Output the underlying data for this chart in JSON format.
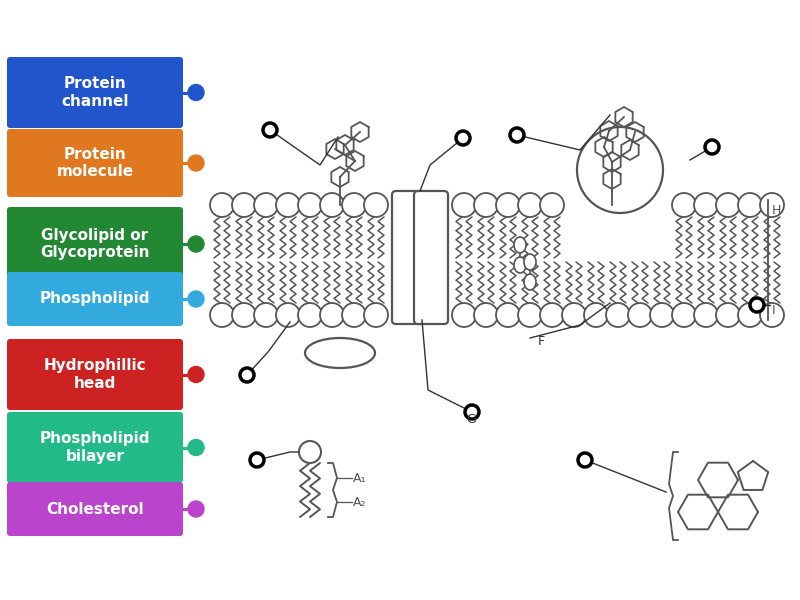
{
  "bg_color": "#ffffff",
  "legend_items": [
    {
      "label": "Protein\nchannel",
      "color": "#2255cc",
      "dot_color": "#2255cc"
    },
    {
      "label": "Protein\nmolecule",
      "color": "#e07820",
      "dot_color": "#e07820"
    },
    {
      "label": "Glycolipid or\nGlycoprotein",
      "color": "#228833",
      "dot_color": "#228833"
    },
    {
      "label": "Phospholipid",
      "color": "#33aadd",
      "dot_color": "#33aadd"
    },
    {
      "label": "Hydrophillic\nhead",
      "color": "#cc2222",
      "dot_color": "#cc2222"
    },
    {
      "label": "Phospholipid\nbilayer",
      "color": "#22bb88",
      "dot_color": "#22bb88"
    },
    {
      "label": "Cholesterol",
      "color": "#bb44cc",
      "dot_color": "#bb44cc"
    }
  ],
  "membrane_color": "#555555",
  "membrane_color_dark": "#333333"
}
